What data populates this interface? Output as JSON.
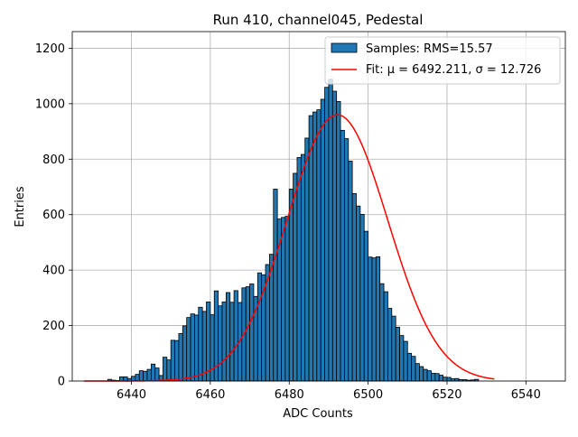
{
  "chart_data": {
    "type": "bar",
    "title": "Run 410, channel045, Pedestal",
    "xlabel": "ADC Counts",
    "ylabel": "Entries",
    "xlim": [
      6425,
      6550
    ],
    "ylim": [
      0,
      1260
    ],
    "xticks": [
      6440,
      6460,
      6480,
      6500,
      6520,
      6540
    ],
    "yticks": [
      0,
      200,
      400,
      600,
      800,
      1000,
      1200
    ],
    "grid": true,
    "legend_position": "top-right",
    "bar_color": "#1f77b4",
    "fit_color": "#ff0000",
    "bins": {
      "start": 6427,
      "width": 1,
      "counts": [
        0,
        0,
        0,
        0,
        0,
        0,
        0,
        6,
        3,
        2,
        15,
        15,
        9,
        17,
        24,
        37,
        35,
        42,
        61,
        47,
        20,
        86,
        76,
        147,
        146,
        171,
        199,
        229,
        242,
        238,
        266,
        251,
        285,
        239,
        325,
        271,
        285,
        319,
        284,
        326,
        283,
        336,
        340,
        350,
        305,
        390,
        383,
        420,
        457,
        692,
        584,
        590,
        594,
        692,
        749,
        806,
        817,
        876,
        957,
        970,
        978,
        1016,
        1059,
        1088,
        1045,
        1008,
        904,
        874,
        793,
        676,
        631,
        601,
        540,
        447,
        444,
        448,
        351,
        322,
        262,
        234,
        194,
        164,
        143,
        100,
        89,
        63,
        52,
        42,
        37,
        28,
        27,
        21,
        14,
        13,
        8,
        9,
        5,
        5,
        3,
        4,
        6,
        0,
        0
      ]
    },
    "series": [
      {
        "name": "Samples: RMS=15.57",
        "kind": "histogram"
      },
      {
        "name": "Fit: $\\mu$ = 6492.211, $\\sigma$ = 12.726",
        "kind": "line",
        "mu": 6492.211,
        "sigma": 12.726,
        "amplitude": 960,
        "x_range": [
          6428,
          6532
        ]
      }
    ]
  }
}
